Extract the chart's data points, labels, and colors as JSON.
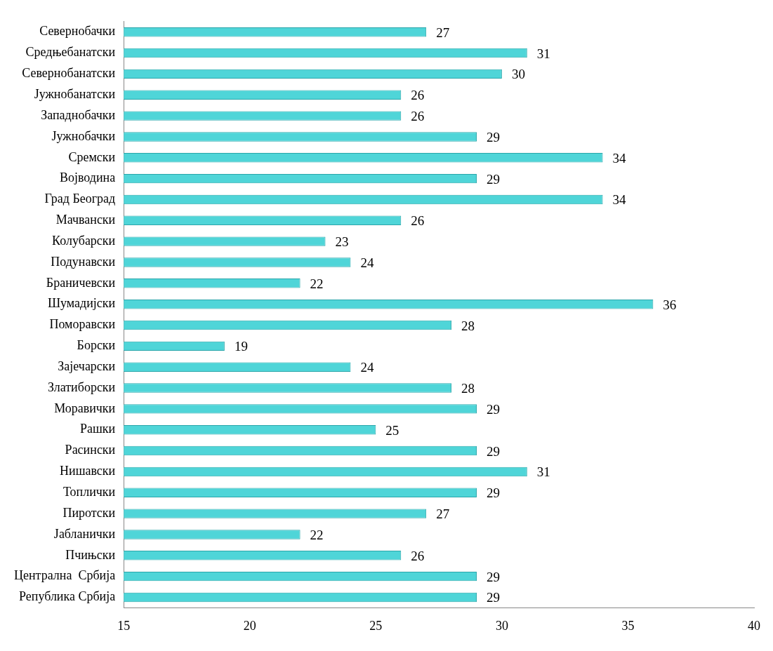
{
  "chart_data": {
    "type": "bar",
    "orientation": "horizontal",
    "categories": [
      "Севернобачки",
      "Средњебанатски",
      "Севернобанатски",
      "Јужнобанатски",
      "Западнобачки",
      "Јужнобачки",
      "Сремски",
      "Војводина",
      "Град Београд",
      "Мачвански",
      "Колубарски",
      "Подунавски",
      "Браничевски",
      "Шумадијски",
      "Поморавски",
      "Борски",
      "Зајечарски",
      "Златиборски",
      "Моравички",
      "Рашки",
      "Расински",
      "Нишавски",
      "Топлички",
      "Пиротски",
      "Јабланички",
      "Пчињски",
      "Централна  Србија",
      "Република Србија"
    ],
    "values": [
      27,
      31,
      30,
      26,
      26,
      29,
      34,
      29,
      34,
      26,
      23,
      24,
      22,
      36,
      28,
      19,
      24,
      28,
      29,
      25,
      29,
      31,
      29,
      27,
      22,
      26,
      29,
      29
    ],
    "color": "#4fd5d8",
    "xlim": [
      15,
      40
    ],
    "xticks": [
      15,
      20,
      25,
      30,
      35,
      40
    ],
    "grid": false,
    "legend": false,
    "data_labels": true
  }
}
